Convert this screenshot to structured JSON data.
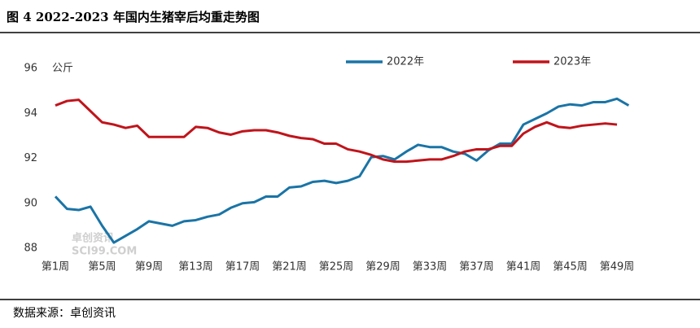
{
  "chart_data": {
    "type": "line",
    "title": "图 4 2022-2023 年国内生猪宰后均重走势图",
    "y_unit": "公斤",
    "source": "数据来源：卓创资讯",
    "watermark": [
      "卓创资讯",
      "SCI99.COM"
    ],
    "categories": [
      "第1周",
      null,
      null,
      null,
      "第5周",
      null,
      null,
      null,
      "第9周",
      null,
      null,
      null,
      "第13周",
      null,
      null,
      null,
      "第17周",
      null,
      null,
      null,
      "第21周",
      null,
      null,
      null,
      "第25周",
      null,
      null,
      null,
      "第29周",
      null,
      null,
      null,
      "第33周",
      null,
      null,
      null,
      "第37周",
      null,
      null,
      null,
      "第41周",
      null,
      null,
      null,
      "第45周",
      null,
      null,
      null,
      "第49周",
      null
    ],
    "series": [
      {
        "name": "2022年",
        "color": "#1a74a6",
        "values": [
          90.3,
          89.75,
          89.7,
          89.85,
          89.0,
          88.25,
          88.55,
          88.85,
          89.2,
          89.1,
          89.0,
          89.2,
          89.25,
          89.4,
          89.5,
          89.8,
          90.0,
          90.05,
          90.3,
          90.3,
          90.7,
          90.75,
          90.95,
          91.0,
          90.9,
          91.0,
          91.2,
          92.05,
          92.1,
          91.95,
          92.3,
          92.6,
          92.5,
          92.5,
          92.3,
          92.2,
          91.9,
          92.35,
          92.65,
          92.65,
          93.5,
          93.75,
          94.0,
          94.3,
          94.4,
          94.35,
          94.5,
          94.5,
          94.65,
          94.35
        ]
      },
      {
        "name": "2023年",
        "color": "#c0141b",
        "values": [
          94.35,
          94.55,
          94.6,
          94.1,
          93.6,
          93.5,
          93.35,
          93.45,
          92.95,
          92.95,
          92.95,
          92.95,
          93.4,
          93.35,
          93.15,
          93.05,
          93.2,
          93.25,
          93.25,
          93.15,
          93.0,
          92.9,
          92.85,
          92.65,
          92.65,
          92.4,
          92.3,
          92.15,
          91.95,
          91.85,
          91.85,
          91.9,
          91.95,
          91.95,
          92.1,
          92.3,
          92.4,
          92.4,
          92.55,
          92.55,
          93.1,
          93.4,
          93.6,
          93.4,
          93.35,
          93.45,
          93.5,
          93.55,
          93.5,
          null
        ]
      }
    ],
    "ylim": [
      88,
      96
    ],
    "yticks": [
      88,
      90,
      92,
      94,
      96
    ],
    "grid": false,
    "legend": "top"
  }
}
